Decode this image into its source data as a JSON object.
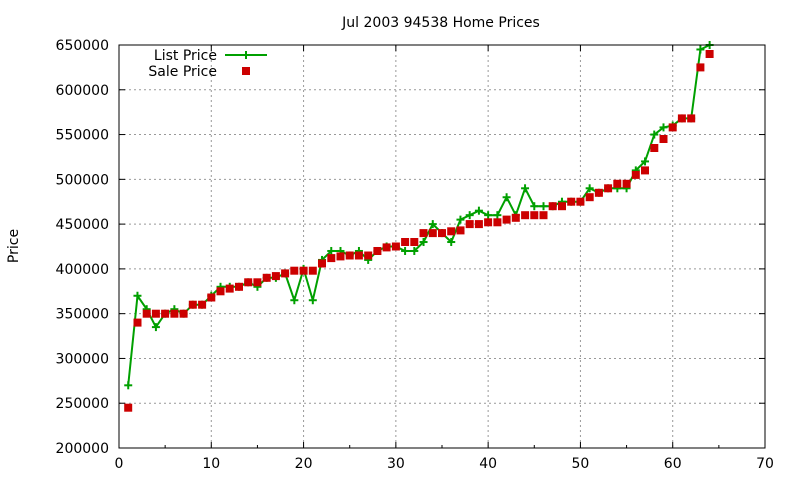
{
  "chart_data": {
    "type": "line",
    "title": "Jul 2003 94538 Home Prices",
    "xlabel": "",
    "ylabel": "Price",
    "xlim": [
      0,
      70
    ],
    "ylim": [
      200000,
      650000
    ],
    "xticks": [
      0,
      10,
      20,
      30,
      40,
      50,
      60,
      70
    ],
    "yticks": [
      200000,
      250000,
      300000,
      350000,
      400000,
      450000,
      500000,
      550000,
      600000,
      650000
    ],
    "grid": true,
    "legend": "top-left",
    "series": [
      {
        "name": "List Price",
        "style": "line-plus",
        "color": "#00a000",
        "x": [
          1,
          2,
          3,
          4,
          5,
          6,
          7,
          8,
          9,
          10,
          11,
          12,
          13,
          14,
          15,
          16,
          17,
          18,
          19,
          20,
          21,
          22,
          23,
          24,
          25,
          26,
          27,
          28,
          29,
          30,
          31,
          32,
          33,
          34,
          35,
          36,
          37,
          38,
          39,
          40,
          41,
          42,
          43,
          44,
          45,
          46,
          47,
          48,
          49,
          50,
          51,
          52,
          53,
          54,
          55,
          56,
          57,
          58,
          59,
          60,
          61,
          62,
          63,
          64
        ],
        "values": [
          270000,
          370000,
          355000,
          335000,
          350000,
          355000,
          350000,
          360000,
          360000,
          370000,
          380000,
          380000,
          380000,
          385000,
          380000,
          390000,
          390000,
          395000,
          365000,
          400000,
          365000,
          410000,
          420000,
          420000,
          415000,
          420000,
          410000,
          420000,
          425000,
          425000,
          420000,
          420000,
          430000,
          450000,
          440000,
          430000,
          455000,
          460000,
          465000,
          460000,
          460000,
          480000,
          460000,
          490000,
          470000,
          470000,
          470000,
          475000,
          475000,
          475000,
          490000,
          485000,
          490000,
          490000,
          490000,
          510000,
          520000,
          550000,
          558000,
          560000,
          568000,
          568000,
          645000,
          650000
        ]
      },
      {
        "name": "Sale Price",
        "style": "square-points",
        "color": "#cc0000",
        "x": [
          1,
          2,
          3,
          4,
          5,
          6,
          7,
          8,
          9,
          10,
          11,
          12,
          13,
          14,
          15,
          16,
          17,
          18,
          19,
          20,
          21,
          22,
          23,
          24,
          25,
          26,
          27,
          28,
          29,
          30,
          31,
          32,
          33,
          34,
          35,
          36,
          37,
          38,
          39,
          40,
          41,
          42,
          43,
          44,
          45,
          46,
          47,
          48,
          49,
          50,
          51,
          52,
          53,
          54,
          55,
          56,
          57,
          58,
          59,
          60,
          61,
          62,
          63,
          64
        ],
        "values": [
          245000,
          340000,
          350000,
          350000,
          350000,
          350000,
          350000,
          360000,
          360000,
          368000,
          375000,
          378000,
          380000,
          385000,
          385000,
          390000,
          392000,
          395000,
          398000,
          398000,
          398000,
          406000,
          412000,
          414000,
          415000,
          415000,
          415000,
          420000,
          424000,
          425000,
          430000,
          430000,
          440000,
          440000,
          440000,
          442000,
          443000,
          450000,
          450000,
          452000,
          452000,
          455000,
          457000,
          460000,
          460000,
          460000,
          470000,
          470000,
          475000,
          475000,
          480000,
          485000,
          490000,
          495000,
          495000,
          505000,
          510000,
          535000,
          545000,
          558000,
          568000,
          568000,
          625000,
          640000
        ]
      }
    ]
  }
}
